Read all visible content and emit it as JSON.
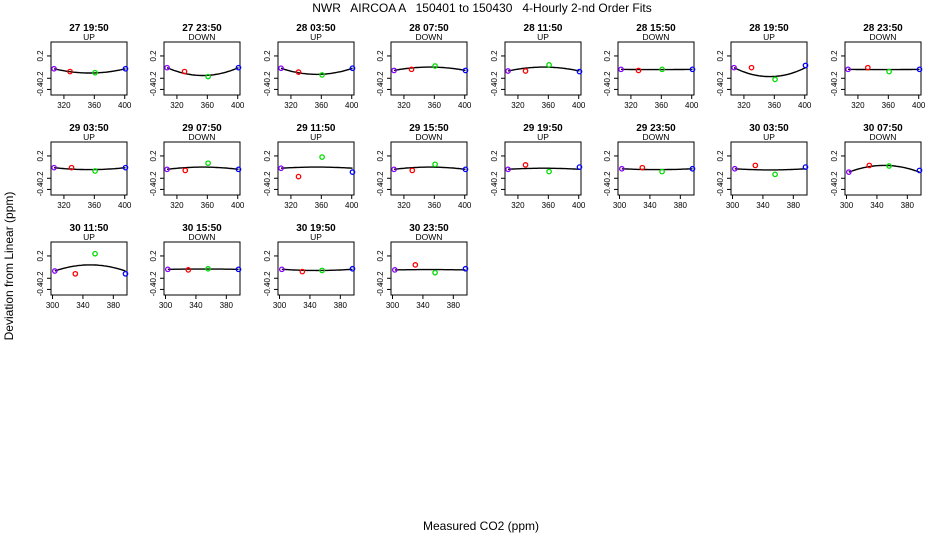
{
  "title": "NWR   AIRCOA A   150401 to 150430   4-Hourly 2-nd Order Fits",
  "xlabel": "Measured CO2 (ppm)",
  "ylabel": "Deviation from Linear (ppm)",
  "colors": {
    "low": "#8800ff",
    "mid_low": "#ff0000",
    "mid_high": "#00dd00",
    "high": "#0000ff",
    "curve": "#000000",
    "axis": "#000000"
  },
  "chart_data": [
    {
      "type": "scatter",
      "title": "27 19:50",
      "subtitle": "UP",
      "xticks": [
        320,
        360,
        400
      ],
      "yticks": [
        0.2,
        -0.2,
        -0.4
      ],
      "xlim": [
        303,
        403
      ],
      "ylim": [
        -0.5,
        0.45
      ],
      "points": [
        {
          "x": 307,
          "y": -0.03
        },
        {
          "x": 328,
          "y": -0.08
        },
        {
          "x": 361,
          "y": -0.1
        },
        {
          "x": 401,
          "y": -0.03
        }
      ],
      "fit": [
        0.0016,
        -0.106
      ]
    },
    {
      "type": "scatter",
      "title": "27 23:50",
      "subtitle": "DOWN",
      "xticks": [
        320,
        360,
        400
      ],
      "yticks": [
        0.2,
        -0.2,
        -0.4
      ],
      "xlim": [
        303,
        403
      ],
      "ylim": [
        -0.5,
        0.45
      ],
      "points": [
        {
          "x": 307,
          "y": -0.01
        },
        {
          "x": 330,
          "y": -0.08
        },
        {
          "x": 361,
          "y": -0.17
        },
        {
          "x": 401,
          "y": -0.01
        }
      ],
      "fit": [
        0.0016,
        -0.15
      ]
    },
    {
      "type": "scatter",
      "title": "28 03:50",
      "subtitle": "UP",
      "xticks": [
        320,
        360,
        400
      ],
      "yticks": [
        0.2,
        -0.2,
        -0.4
      ],
      "xlim": [
        303,
        403
      ],
      "ylim": [
        -0.5,
        0.45
      ],
      "points": [
        {
          "x": 307,
          "y": -0.02
        },
        {
          "x": 330,
          "y": -0.09
        },
        {
          "x": 361,
          "y": -0.14
        },
        {
          "x": 401,
          "y": -0.02
        }
      ],
      "fit": [
        0.0014,
        -0.13
      ]
    },
    {
      "type": "scatter",
      "title": "28 07:50",
      "subtitle": "DOWN",
      "xticks": [
        320,
        360,
        400
      ],
      "yticks": [
        0.2,
        -0.2,
        -0.4
      ],
      "xlim": [
        303,
        403
      ],
      "ylim": [
        -0.5,
        0.45
      ],
      "points": [
        {
          "x": 307,
          "y": -0.06
        },
        {
          "x": 330,
          "y": -0.04
        },
        {
          "x": 361,
          "y": 0.02
        },
        {
          "x": 401,
          "y": -0.06
        }
      ],
      "fit": [
        -0.0008,
        0.0
      ]
    },
    {
      "type": "scatter",
      "title": "28 11:50",
      "subtitle": "UP",
      "xticks": [
        320,
        360,
        400
      ],
      "yticks": [
        0.2,
        -0.2,
        -0.4
      ],
      "xlim": [
        303,
        403
      ],
      "ylim": [
        -0.5,
        0.45
      ],
      "points": [
        {
          "x": 307,
          "y": -0.07
        },
        {
          "x": 330,
          "y": -0.07
        },
        {
          "x": 361,
          "y": 0.04
        },
        {
          "x": 401,
          "y": -0.08
        }
      ],
      "fit": [
        -0.0009,
        0.0
      ]
    },
    {
      "type": "scatter",
      "title": "28 15:50",
      "subtitle": "DOWN",
      "xticks": [
        320,
        360,
        400
      ],
      "yticks": [
        0.2,
        -0.2,
        -0.4
      ],
      "xlim": [
        303,
        403
      ],
      "ylim": [
        -0.5,
        0.45
      ],
      "points": [
        {
          "x": 307,
          "y": -0.04
        },
        {
          "x": 330,
          "y": -0.06
        },
        {
          "x": 361,
          "y": -0.04
        },
        {
          "x": 401,
          "y": -0.04
        }
      ],
      "fit": [
        0.0,
        -0.045
      ]
    },
    {
      "type": "scatter",
      "title": "28 19:50",
      "subtitle": "UP",
      "xticks": [
        320,
        360,
        400
      ],
      "yticks": [
        0.2,
        -0.2,
        -0.4
      ],
      "xlim": [
        303,
        403
      ],
      "ylim": [
        -0.5,
        0.45
      ],
      "points": [
        {
          "x": 307,
          "y": -0.01
        },
        {
          "x": 330,
          "y": -0.01
        },
        {
          "x": 361,
          "y": -0.22
        },
        {
          "x": 401,
          "y": 0.03
        }
      ],
      "fit": [
        0.0017,
        -0.17
      ]
    },
    {
      "type": "scatter",
      "title": "28 23:50",
      "subtitle": "DOWN",
      "xticks": [
        320,
        360,
        400
      ],
      "yticks": [
        0.2,
        -0.2,
        -0.4
      ],
      "xlim": [
        303,
        403
      ],
      "ylim": [
        -0.5,
        0.45
      ],
      "points": [
        {
          "x": 307,
          "y": -0.04
        },
        {
          "x": 333,
          "y": -0.01
        },
        {
          "x": 361,
          "y": -0.08
        },
        {
          "x": 401,
          "y": -0.04
        }
      ],
      "fit": [
        0.0,
        -0.045
      ]
    },
    {
      "type": "scatter",
      "title": "29 03:50",
      "subtitle": "UP",
      "xticks": [
        320,
        360,
        400
      ],
      "yticks": [
        0.2,
        -0.2,
        -0.4
      ],
      "xlim": [
        303,
        403
      ],
      "ylim": [
        -0.5,
        0.45
      ],
      "points": [
        {
          "x": 307,
          "y": -0.01
        },
        {
          "x": 330,
          "y": -0.01
        },
        {
          "x": 361,
          "y": -0.07
        },
        {
          "x": 401,
          "y": -0.01
        }
      ],
      "fit": [
        0.0006,
        -0.045
      ]
    },
    {
      "type": "scatter",
      "title": "29 07:50",
      "subtitle": "DOWN",
      "xticks": [
        320,
        360,
        400
      ],
      "yticks": [
        0.2,
        -0.2,
        -0.4
      ],
      "xlim": [
        303,
        403
      ],
      "ylim": [
        -0.5,
        0.45
      ],
      "points": [
        {
          "x": 307,
          "y": -0.04
        },
        {
          "x": 331,
          "y": -0.06
        },
        {
          "x": 361,
          "y": 0.07
        },
        {
          "x": 401,
          "y": -0.04
        }
      ],
      "fit": [
        -0.0004,
        0.0
      ]
    },
    {
      "type": "scatter",
      "title": "29 11:50",
      "subtitle": "UP",
      "xticks": [
        320,
        360,
        400
      ],
      "yticks": [
        0.2,
        -0.2,
        -0.4
      ],
      "xlim": [
        303,
        403
      ],
      "ylim": [
        -0.5,
        0.45
      ],
      "points": [
        {
          "x": 307,
          "y": -0.02
        },
        {
          "x": 330,
          "y": -0.17
        },
        {
          "x": 361,
          "y": 0.18
        },
        {
          "x": 401,
          "y": -0.09
        }
      ],
      "fit": [
        -0.0004,
        0.0
      ]
    },
    {
      "type": "scatter",
      "title": "29 15:50",
      "subtitle": "DOWN",
      "xticks": [
        320,
        360,
        400
      ],
      "yticks": [
        0.2,
        -0.2,
        -0.4
      ],
      "xlim": [
        303,
        403
      ],
      "ylim": [
        -0.5,
        0.45
      ],
      "points": [
        {
          "x": 307,
          "y": -0.04
        },
        {
          "x": 331,
          "y": -0.06
        },
        {
          "x": 361,
          "y": 0.05
        },
        {
          "x": 401,
          "y": -0.04
        }
      ],
      "fit": [
        -0.0004,
        0.0
      ]
    },
    {
      "type": "scatter",
      "title": "29 19:50",
      "subtitle": "UP",
      "xticks": [
        320,
        360,
        400
      ],
      "yticks": [
        0.2,
        -0.2,
        -0.4
      ],
      "xlim": [
        303,
        403
      ],
      "ylim": [
        -0.5,
        0.45
      ],
      "points": [
        {
          "x": 307,
          "y": -0.04
        },
        {
          "x": 330,
          "y": 0.04
        },
        {
          "x": 361,
          "y": -0.08
        },
        {
          "x": 401,
          "y": 0.0
        }
      ],
      "fit": [
        0.0,
        -0.02
      ]
    },
    {
      "type": "scatter",
      "title": "29 23:50",
      "subtitle": "DOWN",
      "xticks": [
        300,
        340,
        380
      ],
      "yticks": [
        0.2,
        -0.2,
        -0.4
      ],
      "xlim": [
        298,
        398
      ],
      "ylim": [
        -0.5,
        0.45
      ],
      "points": [
        {
          "x": 303,
          "y": -0.03
        },
        {
          "x": 330,
          "y": -0.01
        },
        {
          "x": 356,
          "y": -0.08
        },
        {
          "x": 396,
          "y": -0.03
        }
      ],
      "fit": [
        0.0002,
        -0.045
      ]
    },
    {
      "type": "scatter",
      "title": "30 03:50",
      "subtitle": "UP",
      "xticks": [
        300,
        340,
        380
      ],
      "yticks": [
        0.2,
        -0.2,
        -0.4
      ],
      "xlim": [
        298,
        398
      ],
      "ylim": [
        -0.5,
        0.45
      ],
      "points": [
        {
          "x": 303,
          "y": -0.03
        },
        {
          "x": 330,
          "y": 0.03
        },
        {
          "x": 356,
          "y": -0.13
        },
        {
          "x": 396,
          "y": 0.0
        }
      ],
      "fit": [
        0.0002,
        -0.05
      ]
    },
    {
      "type": "scatter",
      "title": "30 07:50",
      "subtitle": "DOWN",
      "xticks": [
        300,
        340,
        380
      ],
      "yticks": [
        0.2,
        -0.2,
        -0.4
      ],
      "xlim": [
        298,
        398
      ],
      "ylim": [
        -0.5,
        0.45
      ],
      "points": [
        {
          "x": 303,
          "y": -0.09
        },
        {
          "x": 330,
          "y": 0.03
        },
        {
          "x": 356,
          "y": 0.02
        },
        {
          "x": 396,
          "y": -0.06
        }
      ],
      "fit": [
        -0.0015,
        0.03
      ]
    },
    {
      "type": "scatter",
      "title": "30 11:50",
      "subtitle": "UP",
      "xticks": [
        300,
        340,
        380
      ],
      "yticks": [
        0.2,
        -0.2,
        -0.4
      ],
      "xlim": [
        298,
        398
      ],
      "ylim": [
        -0.5,
        0.45
      ],
      "points": [
        {
          "x": 303,
          "y": -0.07
        },
        {
          "x": 330,
          "y": -0.12
        },
        {
          "x": 356,
          "y": 0.24
        },
        {
          "x": 396,
          "y": -0.12
        }
      ],
      "fit": [
        -0.0021,
        0.04
      ]
    },
    {
      "type": "scatter",
      "title": "30 15:50",
      "subtitle": "DOWN",
      "xticks": [
        300,
        340,
        380
      ],
      "yticks": [
        0.2,
        -0.2,
        -0.4
      ],
      "xlim": [
        298,
        398
      ],
      "ylim": [
        -0.5,
        0.45
      ],
      "points": [
        {
          "x": 303,
          "y": -0.04
        },
        {
          "x": 330,
          "y": -0.05
        },
        {
          "x": 356,
          "y": -0.03
        },
        {
          "x": 396,
          "y": -0.04
        }
      ],
      "fit": [
        -0.0002,
        -0.035
      ]
    },
    {
      "type": "scatter",
      "title": "30 19:50",
      "subtitle": "UP",
      "xticks": [
        300,
        340,
        380
      ],
      "yticks": [
        0.2,
        -0.2,
        -0.4
      ],
      "xlim": [
        298,
        398
      ],
      "ylim": [
        -0.5,
        0.45
      ],
      "points": [
        {
          "x": 303,
          "y": -0.04
        },
        {
          "x": 330,
          "y": -0.08
        },
        {
          "x": 356,
          "y": -0.06
        },
        {
          "x": 396,
          "y": -0.03
        }
      ],
      "fit": [
        0.0004,
        -0.06
      ]
    },
    {
      "type": "scatter",
      "title": "30 23:50",
      "subtitle": "DOWN",
      "xticks": [
        300,
        340,
        380
      ],
      "yticks": [
        0.2,
        -0.2,
        -0.4
      ],
      "xlim": [
        298,
        398
      ],
      "ylim": [
        -0.5,
        0.45
      ],
      "points": [
        {
          "x": 303,
          "y": -0.05
        },
        {
          "x": 330,
          "y": 0.04
        },
        {
          "x": 356,
          "y": -0.1
        },
        {
          "x": 396,
          "y": -0.03
        }
      ],
      "fit": [
        0.0,
        -0.045
      ]
    }
  ]
}
